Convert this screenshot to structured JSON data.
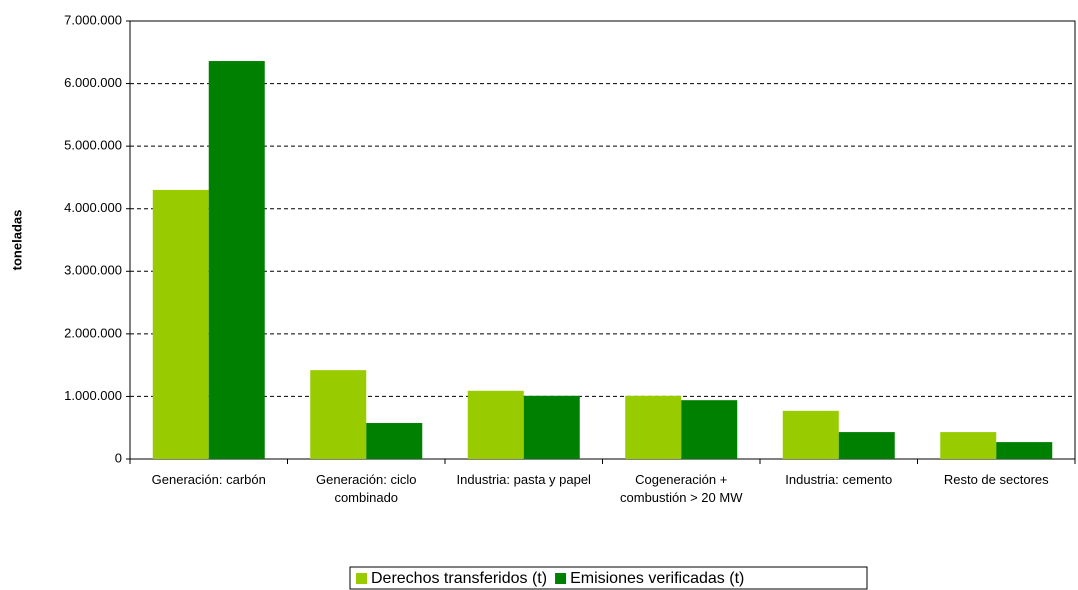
{
  "chart_data": {
    "type": "bar",
    "y_label": "toneladas",
    "categories": [
      "Generación: carbón",
      "Generación: ciclo combinado",
      "Industria: pasta y papel",
      "Cogeneración + combustión > 20 MW",
      "Industria: cemento",
      "Resto de sectores"
    ],
    "series": [
      {
        "name": "Derechos transferidos (t)",
        "color": "#99cc00",
        "values": [
          4300000,
          1420000,
          1090000,
          1010000,
          770000,
          430000
        ]
      },
      {
        "name": "Emisiones verificadas (t)",
        "color": "#008000",
        "values": [
          6360000,
          575000,
          1010000,
          940000,
          430000,
          270000
        ]
      }
    ],
    "ylim": [
      0,
      7000000
    ],
    "yticks": [
      0,
      {
        "value": 1000000,
        "label": "1.000.000"
      },
      {
        "value": 2000000,
        "label": "2.000.000"
      },
      {
        "value": 3000000,
        "label": "3.000.000"
      },
      {
        "value": 4000000,
        "label": "4.000.000"
      },
      {
        "value": 5000000,
        "label": "5.000.000"
      },
      {
        "value": 6000000,
        "label": "6.000.000"
      },
      {
        "value": 7000000,
        "label": "7.000.000"
      }
    ],
    "grid": true
  }
}
